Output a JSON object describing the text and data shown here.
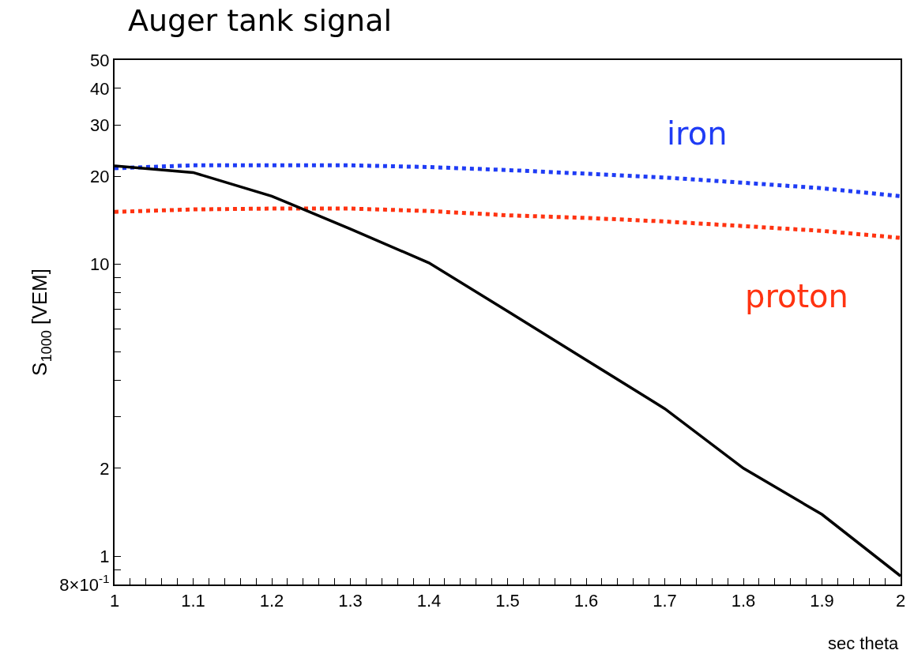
{
  "chart_data": {
    "type": "line",
    "title": "Auger tank signal",
    "xlabel": "sec theta",
    "ylabel": "S$_{1000}$ [VEM]",
    "log": "y",
    "grid": false,
    "legend": false,
    "marker": "none",
    "xlim": [
      1,
      2
    ],
    "ylim": [
      0.8,
      50
    ],
    "xticks": [
      1,
      {
        "value": 1.02,
        "label": null
      },
      {
        "value": 1.04,
        "label": null
      },
      {
        "value": 1.06,
        "label": null
      },
      {
        "value": 1.08,
        "label": null
      },
      1.1,
      {
        "value": 1.12,
        "label": null
      },
      {
        "value": 1.14,
        "label": null
      },
      {
        "value": 1.16,
        "label": null
      },
      {
        "value": 1.18,
        "label": null
      },
      1.2,
      {
        "value": 1.22,
        "label": null
      },
      {
        "value": 1.24,
        "label": null
      },
      {
        "value": 1.26,
        "label": null
      },
      {
        "value": 1.28,
        "label": null
      },
      1.3,
      {
        "value": 1.32,
        "label": null
      },
      {
        "value": 1.34,
        "label": null
      },
      {
        "value": 1.36,
        "label": null
      },
      {
        "value": 1.38,
        "label": null
      },
      1.4,
      {
        "value": 1.42,
        "label": null
      },
      {
        "value": 1.44,
        "label": null
      },
      {
        "value": 1.46,
        "label": null
      },
      {
        "value": 1.48,
        "label": null
      },
      1.5,
      {
        "value": 1.52,
        "label": null
      },
      {
        "value": 1.54,
        "label": null
      },
      {
        "value": 1.56,
        "label": null
      },
      {
        "value": 1.58,
        "label": null
      },
      1.6,
      {
        "value": 1.62,
        "label": null
      },
      {
        "value": 1.64,
        "label": null
      },
      {
        "value": 1.66,
        "label": null
      },
      {
        "value": 1.68,
        "label": null
      },
      1.7,
      {
        "value": 1.72,
        "label": null
      },
      {
        "value": 1.74,
        "label": null
      },
      {
        "value": 1.76,
        "label": null
      },
      {
        "value": 1.78,
        "label": null
      },
      1.8,
      {
        "value": 1.82,
        "label": null
      },
      {
        "value": 1.84,
        "label": null
      },
      {
        "value": 1.86,
        "label": null
      },
      {
        "value": 1.88,
        "label": null
      },
      1.9,
      {
        "value": 1.92,
        "label": null
      },
      {
        "value": 1.94,
        "label": null
      },
      {
        "value": 1.96,
        "label": null
      },
      {
        "value": 1.98,
        "label": null
      },
      2
    ],
    "yticks": [
      {
        "value": 0.8,
        "label": "8×10$^{-1}$"
      },
      {
        "value": 0.9,
        "label": null
      },
      1,
      2,
      {
        "value": 3,
        "label": null
      },
      {
        "value": 4,
        "label": null
      },
      {
        "value": 5,
        "label": null
      },
      {
        "value": 6,
        "label": null
      },
      {
        "value": 7,
        "label": null
      },
      {
        "value": 8,
        "label": null
      },
      {
        "value": 9,
        "label": null
      },
      10,
      20,
      30,
      40,
      50
    ],
    "x": [
      1.0,
      1.1,
      1.2,
      1.3,
      1.4,
      1.5,
      1.6,
      1.7,
      1.8,
      1.9,
      2.0
    ],
    "series": [
      {
        "name": "iron",
        "color": "#1f3cf5",
        "line_style": "dotted",
        "values": [
          21.3,
          21.8,
          21.8,
          21.8,
          21.5,
          21.0,
          20.4,
          19.8,
          19.0,
          18.2,
          17.1
        ]
      },
      {
        "name": "proton",
        "color": "#ff3311",
        "line_style": "dotted",
        "values": [
          15.1,
          15.4,
          15.5,
          15.5,
          15.2,
          14.7,
          14.4,
          14.0,
          13.5,
          13.0,
          12.3
        ]
      },
      {
        "color": "#000000",
        "line_style": "solid",
        "values": [
          21.7,
          20.6,
          17.1,
          13.2,
          10.1,
          6.9,
          4.7,
          3.2,
          2.0,
          1.39,
          0.855
        ]
      }
    ]
  }
}
